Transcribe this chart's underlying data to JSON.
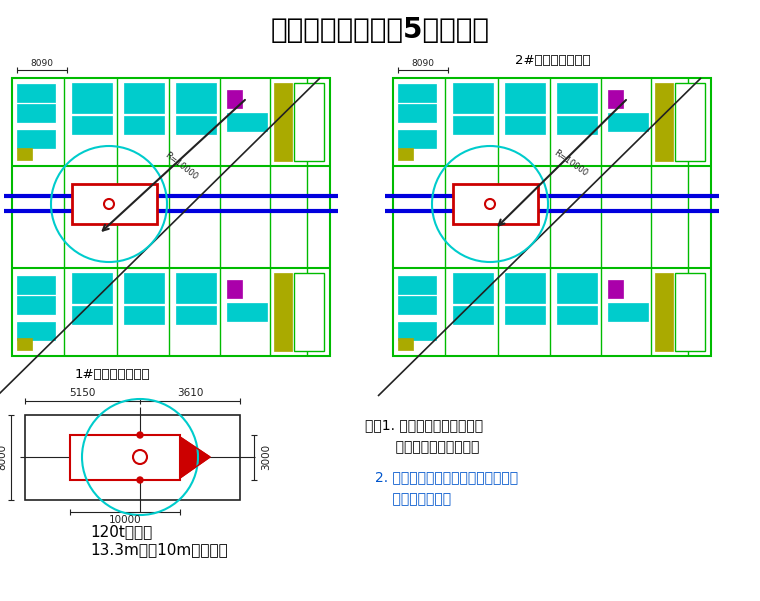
{
  "title": "吊装平面图（锌锅5片供货）",
  "label_2sharp": "2#热镀锌机组锌锅",
  "label_1sharp": "1#热镀锌机组锌锅",
  "label_crane": "120t汽车吊",
  "label_crane2": "13.3m杆，10m作业半径",
  "note_line1": "注：1. 山车行走道路需回填、",
  "note_line2": "       夯实、面层施工完成；",
  "note_line3": "2. 吊车走行路线上，无地下室孔洞，",
  "note_line4": "    全为实心基础。",
  "dim_top_left": "8090",
  "dim_top_right": "8090",
  "dim_5150": "5150",
  "dim_3610": "3610",
  "dim_8000": "8000",
  "dim_10000": "10000",
  "dim_3000": "3000",
  "bg_color": "#ffffff",
  "green": "#00bb00",
  "cyan": "#00cccc",
  "blue": "#0000dd",
  "red": "#cc0000",
  "black": "#000000",
  "dark": "#222222",
  "yellow": "#aaaa00",
  "magenta": "#aa00aa",
  "orange": "#cc6600",
  "gray": "#888888"
}
